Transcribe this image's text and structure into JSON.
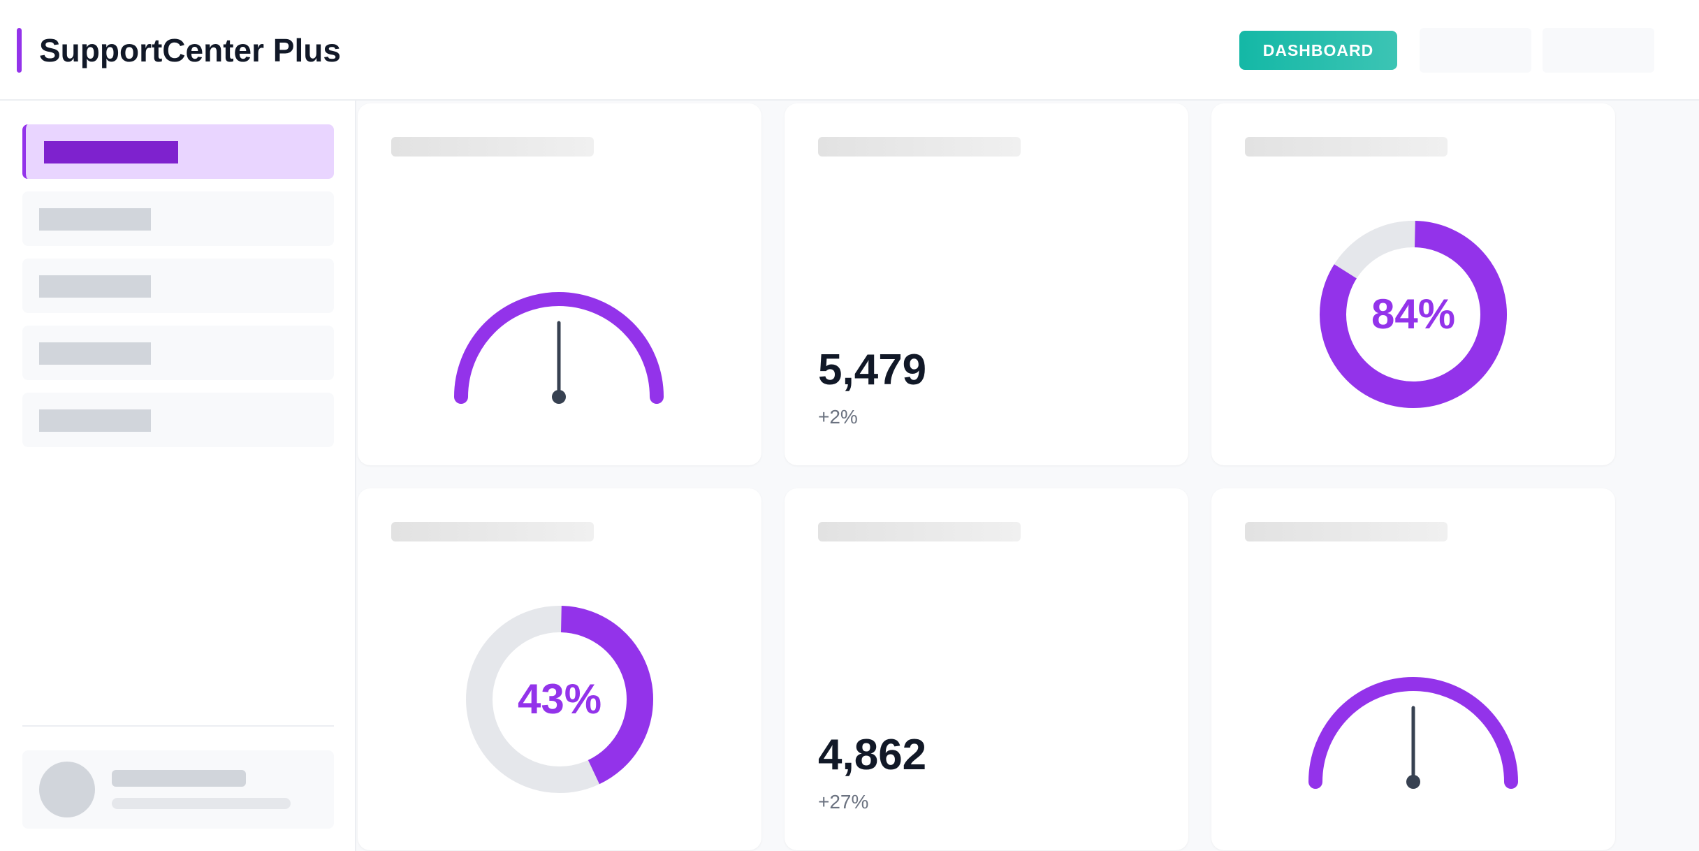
{
  "app": {
    "title": "SupportCenter Plus"
  },
  "header": {
    "dashboard_button": "DASHBOARD"
  },
  "colors": {
    "accent": "#9333ea",
    "teal": "#14b8a6",
    "track": "#e5e7eb",
    "needle": "#374151"
  },
  "cards": {
    "kpi1": {
      "value": "5,479",
      "delta": "+2%"
    },
    "donut1": {
      "label": "84%",
      "percent": 84
    },
    "donut2": {
      "label": "43%",
      "percent": 43
    },
    "kpi2": {
      "value": "4,862",
      "delta": "+27%"
    },
    "gauge1": {
      "level": 0.5
    },
    "gauge2": {
      "level": 0.5
    }
  }
}
